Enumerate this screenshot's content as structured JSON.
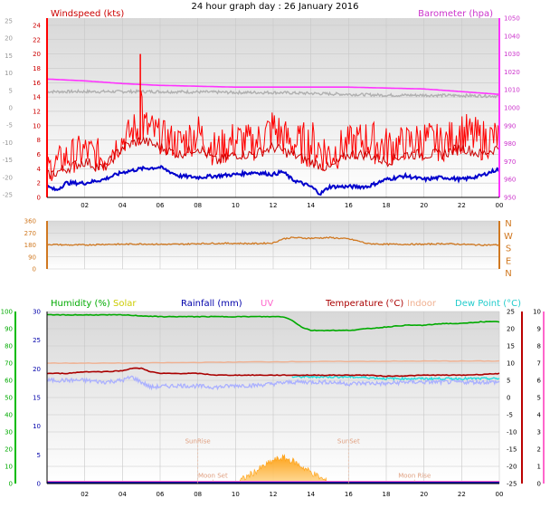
{
  "title": "24 hour graph day : 26 January 2016",
  "colors": {
    "wind": "#e00000",
    "gust": "#ff0000",
    "avg": "#0000cc",
    "baro": "#ff33ff",
    "grey": "#b0b0b0",
    "dir": "#d07820",
    "humidity": "#00aa00",
    "solar": "#ffb040",
    "rain": "#0000aa",
    "uv": "#ff66cc",
    "temp": "#aa0000",
    "indoor": "#f0b090",
    "dew": "#22dddd",
    "chill": "#aab0ff"
  },
  "chart_data": [
    {
      "type": "line",
      "id": "wind",
      "ylabel": "Windspeed (kts)",
      "ylabel_right": "Barometer (hpa)",
      "x_ticks": [
        "02",
        "04",
        "06",
        "08",
        "10",
        "12",
        "14",
        "16",
        "18",
        "20",
        "22",
        "00"
      ],
      "y_left_ticks": [
        0,
        2,
        4,
        6,
        8,
        10,
        12,
        14,
        16,
        18,
        20,
        22,
        24
      ],
      "y_left_range": [
        0,
        25
      ],
      "y_outer_ticks": [
        "25",
        "20",
        "15",
        "10",
        "5",
        "0",
        "-5",
        "-10",
        "-15",
        "-20",
        "-25"
      ],
      "y_right_ticks": [
        1050,
        1040,
        1030,
        1020,
        1010,
        1000,
        990,
        980,
        970,
        960,
        950
      ],
      "y_right_range": [
        950,
        1050
      ],
      "series": [
        {
          "name": "gust",
          "x": [
            0,
            1,
            2,
            3,
            4,
            4.9,
            5,
            5.1,
            6,
            7,
            8,
            9,
            10,
            11,
            12,
            13,
            14,
            15,
            16,
            17,
            18,
            19,
            20,
            21,
            22,
            23,
            24
          ],
          "values": [
            5,
            7,
            8,
            7,
            9,
            12,
            20,
            12,
            10,
            9,
            11,
            8,
            10,
            9,
            12,
            9,
            10,
            8,
            9,
            10,
            9,
            9,
            10,
            9,
            11,
            10,
            10
          ]
        },
        {
          "name": "wind",
          "x": [
            0,
            1,
            2,
            3,
            4,
            5,
            6,
            7,
            8,
            9,
            10,
            11,
            12,
            13,
            14,
            15,
            16,
            17,
            18,
            19,
            20,
            21,
            22,
            23,
            24
          ],
          "values": [
            3,
            4,
            5,
            4,
            7,
            8,
            7,
            6,
            7,
            5,
            6,
            6,
            7,
            6,
            5,
            4,
            6,
            6,
            5,
            6,
            6,
            6,
            7,
            6,
            7
          ]
        },
        {
          "name": "avg",
          "x": [
            0,
            0.5,
            1,
            2,
            3,
            4,
            5,
            6,
            7,
            8,
            9,
            10,
            11,
            12,
            12.5,
            13,
            14,
            14.5,
            15,
            16,
            17,
            18,
            19,
            20,
            21,
            22,
            23,
            24
          ],
          "values": [
            1.5,
            1.0,
            2.0,
            2.0,
            2.5,
            3.5,
            4.0,
            4.2,
            3.0,
            2.8,
            3.0,
            3.2,
            3.5,
            3.2,
            3.6,
            2.5,
            1.5,
            0.5,
            1.5,
            1.5,
            1.5,
            2.5,
            3.0,
            2.5,
            2.8,
            2.5,
            3.0,
            4.0
          ]
        },
        {
          "name": "barometer",
          "x": [
            0,
            2,
            4,
            6,
            8,
            10,
            12,
            14,
            16,
            18,
            20,
            22,
            24
          ],
          "values": [
            1016,
            1015,
            1013.5,
            1012.5,
            1012,
            1011.5,
            1011.5,
            1011.5,
            1011.5,
            1011,
            1010.5,
            1009,
            1007.5
          ]
        },
        {
          "name": "grey",
          "x": [
            0,
            2,
            4,
            6,
            8,
            10,
            12,
            14,
            16,
            18,
            20,
            22,
            24
          ],
          "values": [
            1009,
            1009,
            1009,
            1009,
            1008.8,
            1008.5,
            1008.5,
            1008,
            1007.5,
            1007,
            1007,
            1006.8,
            1006.5
          ]
        }
      ]
    },
    {
      "type": "line",
      "id": "direction",
      "y_ticks": [
        0,
        90,
        180,
        270,
        360
      ],
      "y_range": [
        0,
        360
      ],
      "compass": [
        "N",
        "W",
        "S",
        "E",
        "N"
      ],
      "x_ticks": [
        "02",
        "04",
        "06",
        "08",
        "10",
        "12",
        "14",
        "16",
        "18",
        "20",
        "22",
        "00"
      ],
      "series": [
        {
          "name": "direction",
          "x": [
            0,
            1,
            2,
            3,
            4,
            5,
            6,
            7,
            8,
            9,
            10,
            11,
            12,
            12.5,
            13,
            14,
            15,
            16,
            16.5,
            17,
            18,
            19,
            20,
            21,
            22,
            23,
            24
          ],
          "values": [
            185,
            180,
            180,
            185,
            185,
            188,
            185,
            185,
            190,
            192,
            192,
            190,
            195,
            225,
            235,
            230,
            235,
            225,
            210,
            190,
            185,
            185,
            185,
            190,
            185,
            180,
            180
          ]
        }
      ]
    },
    {
      "type": "line",
      "id": "climate",
      "labels": {
        "humidity": "Humidity (%)",
        "solar": "Solar",
        "rain": "Rainfall (mm)",
        "uv": "UV",
        "temp": "Temperature (°C)",
        "indoor": "Indoor",
        "dew": "Dew Point (°C)"
      },
      "y_outer_ticks": [
        0,
        10,
        20,
        30,
        40,
        50,
        60,
        70,
        80,
        90,
        100
      ],
      "y_left_ticks": [
        0,
        5,
        10,
        15,
        20,
        25,
        30
      ],
      "y_right_ticks": [
        25,
        20,
        15,
        10,
        5,
        0,
        -5,
        -10,
        -15,
        -20,
        -25
      ],
      "y_right_range": [
        -25,
        25
      ],
      "y_far_right_ticks": [
        10,
        9,
        8,
        7,
        6,
        5,
        4,
        3,
        2,
        1,
        0
      ],
      "x_ticks": [
        "02",
        "04",
        "06",
        "08",
        "10",
        "12",
        "14",
        "16",
        "18",
        "20",
        "22",
        "00"
      ],
      "annotations": [
        {
          "text": "SunRise",
          "x": 8.0,
          "y": 7
        },
        {
          "text": "SunSet",
          "x": 16.0,
          "y": 7
        },
        {
          "text": "Moon Set",
          "x": 8.8,
          "y": 1
        },
        {
          "text": "Moon Rise",
          "x": 19.5,
          "y": 1
        }
      ],
      "series": [
        {
          "name": "humidity",
          "unit": "%",
          "x": [
            0,
            2,
            4,
            6,
            8,
            10,
            11.5,
            12.5,
            13,
            13.5,
            14,
            15,
            16,
            17,
            18,
            19,
            20,
            21,
            22,
            23,
            24
          ],
          "values": [
            98,
            98,
            98,
            97,
            97,
            97,
            97,
            97,
            95,
            91,
            89,
            89,
            89,
            90,
            91,
            92,
            92,
            93,
            93,
            94,
            94
          ]
        },
        {
          "name": "indoor",
          "x": [
            0,
            4,
            8,
            12,
            16,
            20,
            24
          ],
          "values": [
            10,
            10,
            10.2,
            10.4,
            10.5,
            10.6,
            10.6
          ]
        },
        {
          "name": "temperature",
          "x": [
            0,
            1,
            2,
            3,
            4,
            4.5,
            5,
            5.5,
            6,
            7,
            8,
            9,
            10,
            11,
            12,
            13,
            14,
            15,
            16,
            17,
            18,
            19,
            20,
            21,
            22,
            23,
            24
          ],
          "values": [
            7,
            7,
            7.5,
            7.5,
            7.8,
            8.5,
            8.5,
            7.5,
            7,
            7,
            7,
            6.5,
            6.5,
            6.5,
            6.5,
            6.5,
            6.5,
            6.5,
            6.5,
            6.5,
            6.2,
            6.3,
            6.5,
            6.5,
            6.5,
            6.7,
            7
          ]
        },
        {
          "name": "dewpoint",
          "x": [
            13,
            14,
            15,
            16,
            17,
            18,
            19,
            20,
            21,
            22,
            23,
            24
          ],
          "values": [
            6,
            6,
            6,
            6,
            5.8,
            5.5,
            5.5,
            5.5,
            5.5,
            5.5,
            5.5,
            5.5
          ]
        },
        {
          "name": "windchill",
          "x": [
            0,
            1,
            2,
            3,
            4,
            4.5,
            5,
            5.5,
            6,
            7,
            8,
            9,
            10,
            11,
            12,
            13,
            14,
            15,
            16,
            17,
            18,
            19,
            20,
            21,
            22,
            23,
            24
          ],
          "values": [
            5,
            5,
            5,
            4.5,
            5,
            6,
            4.5,
            3,
            3.2,
            3.5,
            3.3,
            3,
            3.5,
            3.5,
            4,
            4.5,
            4.5,
            4.5,
            4,
            4.2,
            4,
            4.5,
            4.5,
            4.5,
            4.5,
            4.5,
            4.5
          ]
        },
        {
          "name": "solar",
          "x": [
            10,
            10.5,
            11,
            11.5,
            12,
            12.5,
            13,
            13.5,
            14,
            14.5,
            15
          ],
          "values": [
            0,
            1,
            2,
            3,
            4,
            4.5,
            4,
            3,
            2,
            1,
            0
          ]
        }
      ]
    }
  ]
}
